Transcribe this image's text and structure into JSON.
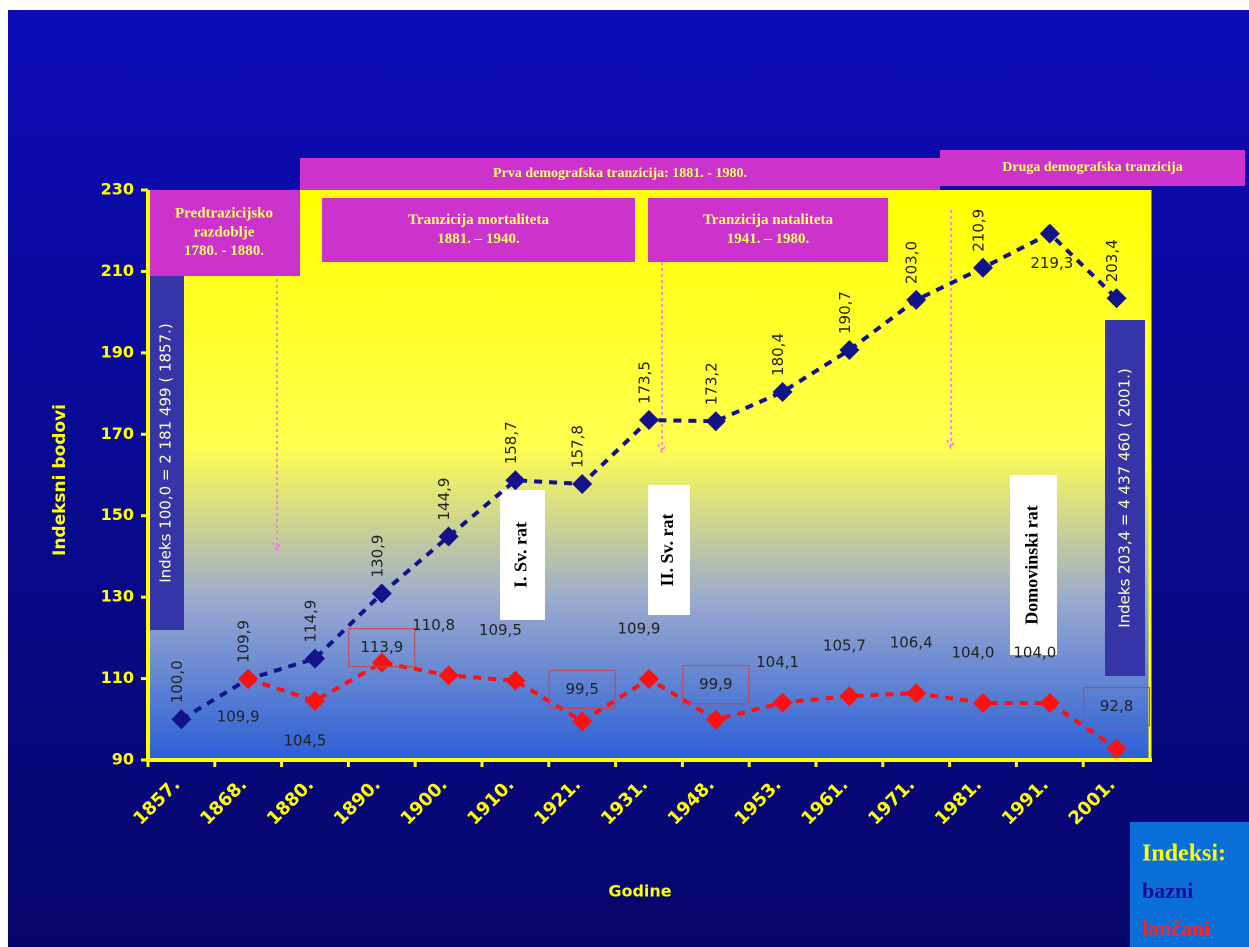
{
  "chart_data": {
    "type": "line",
    "x_label": "Godine",
    "y_label": "Indeksni bodovi",
    "categories": [
      "1857.",
      "1868.",
      "1880.",
      "1890.",
      "1900.",
      "1910.",
      "1921.",
      "1931.",
      "1948.",
      "1953.",
      "1961.",
      "1971.",
      "1981.",
      "1991.",
      "2001."
    ],
    "series": [
      {
        "name": "bazni",
        "color": "#12128a",
        "values": [
          100.0,
          109.9,
          114.9,
          130.9,
          144.9,
          158.7,
          157.8,
          173.5,
          173.2,
          180.4,
          190.7,
          203.0,
          210.9,
          219.3,
          203.4
        ],
        "value_labels": [
          "100,0",
          "109,9",
          "114,9",
          "130,9",
          "144,9",
          "158,7",
          "157,8",
          "173,5",
          "173,2",
          "180,4",
          "190,7",
          "203,0",
          "210,9",
          "219,3",
          "203,4"
        ]
      },
      {
        "name": "lančani",
        "color": "#ff1010",
        "values": [
          null,
          109.9,
          104.5,
          113.9,
          110.8,
          109.5,
          99.5,
          109.9,
          99.9,
          104.1,
          105.7,
          106.4,
          104.0,
          104.0,
          92.8
        ],
        "value_labels": [
          null,
          "109,9",
          "104,5",
          "113,9",
          "110,8",
          "109,5",
          "99,5",
          "109,9",
          "99,9",
          "104,1",
          "105,7",
          "106,4",
          "104,0",
          "104,0",
          "92,8"
        ]
      }
    ],
    "ylim": [
      90,
      230
    ],
    "yticks": [
      90,
      110,
      130,
      150,
      170,
      190,
      210,
      230
    ],
    "grid": false,
    "legend_title": "Indeksi:",
    "legend": "lower right",
    "annotations": [
      {
        "lines": [
          "Prva demografska tranzicija: 1881. - 1980."
        ]
      },
      {
        "lines": [
          "Druga demografska tranzicija"
        ]
      },
      {
        "lines": [
          "Predtrazicijsko",
          "razdoblje",
          "1780. - 1880."
        ]
      },
      {
        "lines": [
          "Tranzicija mortaliteta",
          "1881. – 1940."
        ]
      },
      {
        "lines": [
          "Tranzicija nataliteta",
          "1941. – 1980."
        ]
      },
      {
        "lines": [
          "Indeks 100,0 = 2 181 499 ( 1857.)"
        ]
      },
      {
        "lines": [
          "Indeks 203,4 = 4 437 460 ( 2001.)"
        ]
      },
      {
        "lines": [
          "I. Sv. rat"
        ]
      },
      {
        "lines": [
          "II. Sv. rat"
        ]
      },
      {
        "lines": [
          "Domovinski rat"
        ]
      }
    ]
  }
}
